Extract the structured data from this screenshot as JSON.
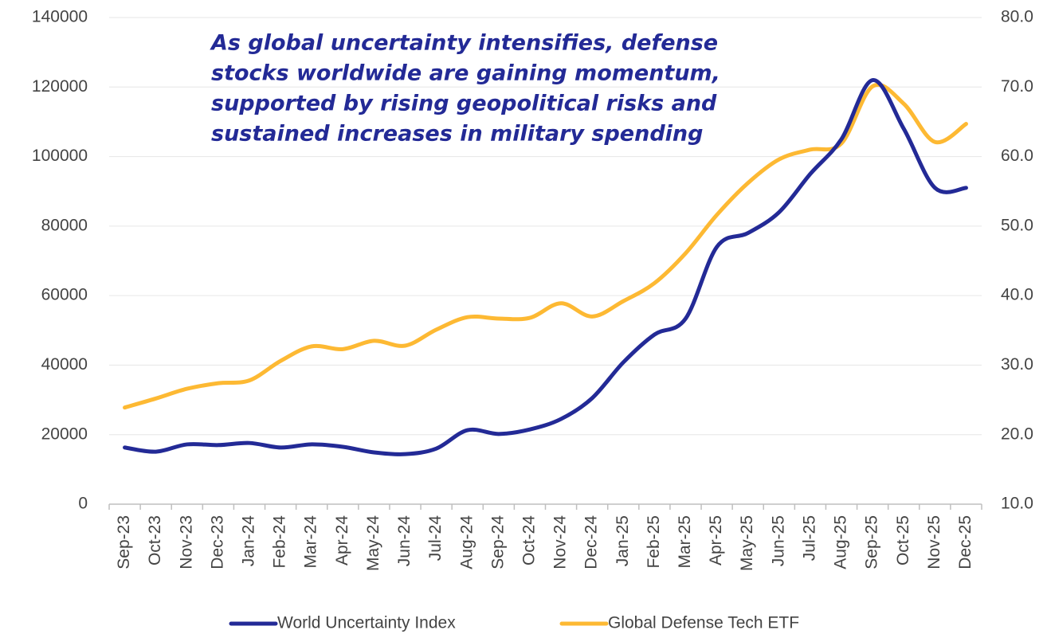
{
  "chart_data": {
    "type": "line",
    "annotation": [
      "As global uncertainty intensifies, defense",
      "stocks worldwide are gaining momentum,",
      "supported by rising geopolitical risks and",
      "sustained increases in military spending"
    ],
    "categories": [
      "Sep-23",
      "Oct-23",
      "Nov-23",
      "Dec-23",
      "Jan-24",
      "Feb-24",
      "Mar-24",
      "Apr-24",
      "May-24",
      "Jun-24",
      "Jul-24",
      "Aug-24",
      "Sep-24",
      "Oct-24",
      "Nov-24",
      "Dec-24",
      "Jan-25",
      "Feb-25",
      "Mar-25",
      "Apr-25",
      "May-25",
      "Jun-25",
      "Jul-25",
      "Aug-25",
      "Sep-25",
      "Oct-25",
      "Nov-25",
      "Dec-25"
    ],
    "series": [
      {
        "name": "World Uncertainty Index",
        "color": "#232a96",
        "axis": "y",
        "values": [
          16300,
          15100,
          17200,
          17000,
          17600,
          16300,
          17200,
          16500,
          14900,
          14400,
          16000,
          21300,
          20200,
          21500,
          24500,
          30500,
          40800,
          48800,
          53400,
          74000,
          78000,
          84000,
          95000,
          105000,
          122000,
          108000,
          91000,
          91000
        ]
      },
      {
        "name": "Global Defense Tech ETF",
        "color": "#fdb933",
        "axis": "y2",
        "values": [
          23.9,
          25.2,
          26.6,
          27.4,
          27.8,
          30.6,
          32.7,
          32.3,
          33.5,
          32.8,
          35.1,
          36.9,
          36.7,
          36.8,
          38.9,
          37.0,
          39.2,
          41.8,
          46.1,
          51.6,
          56.2,
          59.6,
          61.0,
          61.9,
          70.1,
          67.6,
          62.1,
          64.7
        ]
      }
    ],
    "ylim": [
      0,
      140000
    ],
    "yticks": [
      0,
      20000,
      40000,
      60000,
      80000,
      100000,
      120000,
      140000
    ],
    "y2lim": [
      10,
      80
    ],
    "y2ticks": [
      {
        "value": 10,
        "label": "10.0"
      },
      {
        "value": 20,
        "label": "20.0"
      },
      {
        "value": 30,
        "label": "30.0"
      },
      {
        "value": 40,
        "label": "40.0"
      },
      {
        "value": 50,
        "label": "50.0"
      },
      {
        "value": 60,
        "label": "60.0"
      },
      {
        "value": 70,
        "label": "70.0"
      },
      {
        "value": 80,
        "label": "80.0"
      }
    ],
    "grid": true,
    "legend": "bottom"
  }
}
